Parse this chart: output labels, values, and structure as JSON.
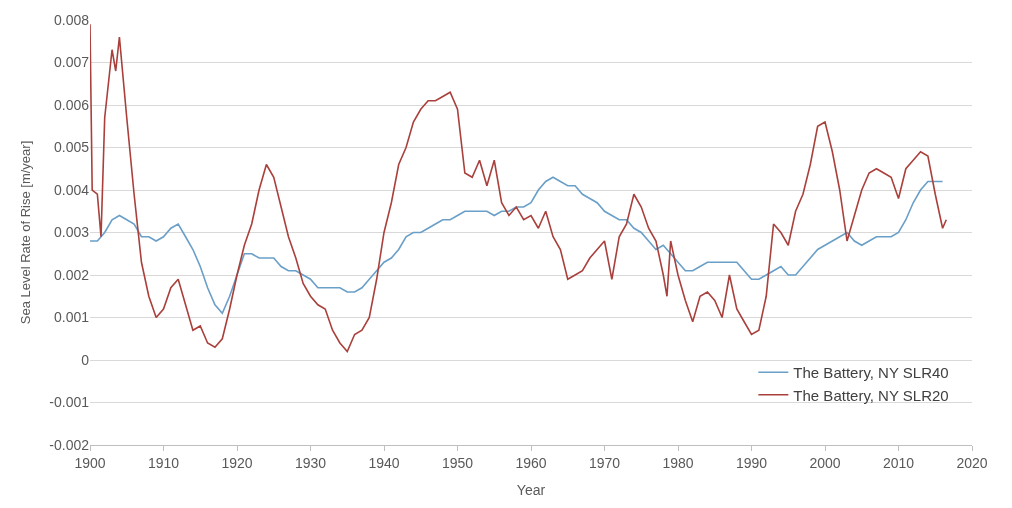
{
  "chart_data": {
    "type": "line",
    "xlabel": "Year",
    "ylabel": "Sea Level Rate of Rise [m/year]",
    "xlim": [
      1900,
      2020
    ],
    "xticks": [
      1900,
      1910,
      1920,
      1930,
      1940,
      1950,
      1960,
      1970,
      1980,
      1990,
      2000,
      2010,
      2020
    ],
    "ylim": [
      -0.002,
      0.008
    ],
    "yticks": [
      -0.002,
      -0.001,
      0,
      0.001,
      0.002,
      0.003,
      0.004,
      0.005,
      0.006,
      0.007,
      0.008
    ],
    "grid": "y",
    "legend": "bottom right",
    "marker": "none",
    "line_style": "solid",
    "series": [
      {
        "name": "The Battery, NY SLR40",
        "color": "#6a9fc8",
        "x": [
          1900,
          1901,
          1902,
          1903,
          1904,
          1905,
          1906,
          1907,
          1908,
          1909,
          1910,
          1911,
          1912,
          1913,
          1914,
          1915,
          1916,
          1917,
          1918,
          1919,
          1920,
          1921,
          1922,
          1923,
          1924,
          1925,
          1926,
          1927,
          1928,
          1929,
          1930,
          1931,
          1932,
          1933,
          1934,
          1935,
          1936,
          1937,
          1938,
          1939,
          1940,
          1941,
          1942,
          1943,
          1944,
          1945,
          1946,
          1947,
          1948,
          1949,
          1950,
          1951,
          1952,
          1953,
          1954,
          1955,
          1956,
          1957,
          1958,
          1959,
          1960,
          1961,
          1962,
          1963,
          1964,
          1965,
          1966,
          1967,
          1968,
          1969,
          1970,
          1971,
          1972,
          1973,
          1974,
          1975,
          1976,
          1977,
          1978,
          1979,
          1980,
          1981,
          1982,
          1983,
          1984,
          1985,
          1986,
          1987,
          1988,
          1989,
          1990,
          1991,
          1992,
          1993,
          1994,
          1995,
          1996,
          1997,
          1998,
          1999,
          2000,
          2001,
          2002,
          2003,
          2004,
          2005,
          2006,
          2007,
          2008,
          2009,
          2010,
          2011,
          2012,
          2013,
          2014,
          2015,
          2016
        ],
        "values": [
          0.0028,
          0.0028,
          0.003,
          0.0033,
          0.0034,
          0.0033,
          0.0032,
          0.0029,
          0.0029,
          0.0028,
          0.0029,
          0.0031,
          0.0032,
          0.0029,
          0.0026,
          0.0022,
          0.0017,
          0.0013,
          0.0011,
          0.0015,
          0.002,
          0.0025,
          0.0025,
          0.0024,
          0.0024,
          0.0024,
          0.0022,
          0.0021,
          0.0021,
          0.002,
          0.0019,
          0.0017,
          0.0017,
          0.0017,
          0.0017,
          0.0016,
          0.0016,
          0.0017,
          0.0019,
          0.0021,
          0.0023,
          0.0024,
          0.0026,
          0.0029,
          0.003,
          0.003,
          0.0031,
          0.0032,
          0.0033,
          0.0033,
          0.0034,
          0.0035,
          0.0035,
          0.0035,
          0.0035,
          0.0034,
          0.0035,
          0.0035,
          0.0036,
          0.0036,
          0.0037,
          0.004,
          0.0042,
          0.0043,
          0.0042,
          0.0041,
          0.0041,
          0.0039,
          0.0038,
          0.0037,
          0.0035,
          0.0034,
          0.0033,
          0.0033,
          0.0031,
          0.003,
          0.0028,
          0.0026,
          0.0027,
          0.0025,
          0.0023,
          0.0021,
          0.0021,
          0.0022,
          0.0023,
          0.0023,
          0.0023,
          0.0023,
          0.0023,
          0.0021,
          0.0019,
          0.0019,
          0.002,
          0.0021,
          0.0022,
          0.002,
          0.002,
          0.0022,
          0.0024,
          0.0026,
          0.0027,
          0.0028,
          0.0029,
          0.003,
          0.0028,
          0.0027,
          0.0028,
          0.0029,
          0.0029,
          0.0029,
          0.003,
          0.0033,
          0.0037,
          0.004,
          0.0042,
          0.0042,
          0.0042
        ]
      },
      {
        "name": "The Battery, NY SLR20",
        "color": "#a9403c",
        "x": [
          1900,
          1900.3,
          1901,
          1901.5,
          1902,
          1902.5,
          1903,
          1903.5,
          1904,
          1905,
          1906,
          1907,
          1908,
          1909,
          1910,
          1911,
          1912,
          1913,
          1914,
          1915,
          1916,
          1917,
          1918,
          1919,
          1920,
          1921,
          1922,
          1923,
          1924,
          1925,
          1926,
          1927,
          1928,
          1929,
          1930,
          1931,
          1932,
          1933,
          1934,
          1935,
          1936,
          1937,
          1938,
          1939,
          1940,
          1941,
          1942,
          1943,
          1944,
          1945,
          1946,
          1947,
          1948,
          1949,
          1950,
          1951,
          1952,
          1953,
          1954,
          1955,
          1956,
          1957,
          1958,
          1959,
          1960,
          1961,
          1962,
          1963,
          1964,
          1965,
          1966,
          1967,
          1968,
          1969,
          1970,
          1971,
          1972,
          1973,
          1974,
          1975,
          1976,
          1977,
          1978,
          1978.5,
          1979,
          1980,
          1981,
          1982,
          1983,
          1984,
          1985,
          1986,
          1987,
          1988,
          1989,
          1990,
          1991,
          1992,
          1993,
          1994,
          1995,
          1996,
          1997,
          1998,
          1999,
          2000,
          2001,
          2002,
          2003,
          2004,
          2005,
          2006,
          2007,
          2008,
          2009,
          2010,
          2011,
          2012,
          2013,
          2014,
          2015,
          2016,
          2016.5
        ],
        "values": [
          0.0079,
          0.004,
          0.0039,
          0.0029,
          0.0057,
          0.0065,
          0.0073,
          0.0068,
          0.0076,
          0.0057,
          0.0039,
          0.0023,
          0.0015,
          0.001,
          0.0012,
          0.0017,
          0.0019,
          0.0013,
          0.0007,
          0.0008,
          0.0004,
          0.0003,
          0.0005,
          0.0012,
          0.002,
          0.0027,
          0.0032,
          0.004,
          0.0046,
          0.0043,
          0.0036,
          0.0029,
          0.0024,
          0.0018,
          0.0015,
          0.0013,
          0.0012,
          0.0007,
          0.0004,
          0.0002,
          0.0006,
          0.0007,
          0.001,
          0.0019,
          0.003,
          0.0037,
          0.0046,
          0.005,
          0.0056,
          0.0059,
          0.0061,
          0.0061,
          0.0062,
          0.0063,
          0.0059,
          0.0044,
          0.0043,
          0.0047,
          0.0041,
          0.0047,
          0.0037,
          0.0034,
          0.0036,
          0.0033,
          0.0034,
          0.0031,
          0.0035,
          0.0029,
          0.0026,
          0.0019,
          0.002,
          0.0021,
          0.0024,
          0.0026,
          0.0028,
          0.0019,
          0.0029,
          0.0032,
          0.0039,
          0.0036,
          0.0031,
          0.0028,
          0.002,
          0.0015,
          0.0028,
          0.002,
          0.0014,
          0.0009,
          0.0015,
          0.0016,
          0.0014,
          0.001,
          0.002,
          0.0012,
          0.0009,
          0.0006,
          0.0007,
          0.0015,
          0.0032,
          0.003,
          0.0027,
          0.0035,
          0.0039,
          0.0046,
          0.0055,
          0.0056,
          0.0049,
          0.004,
          0.0028,
          0.0034,
          0.004,
          0.0044,
          0.0045,
          0.0044,
          0.0043,
          0.0038,
          0.0045,
          0.0047,
          0.0049,
          0.0048,
          0.0039,
          0.0031,
          0.0033
        ]
      }
    ]
  }
}
